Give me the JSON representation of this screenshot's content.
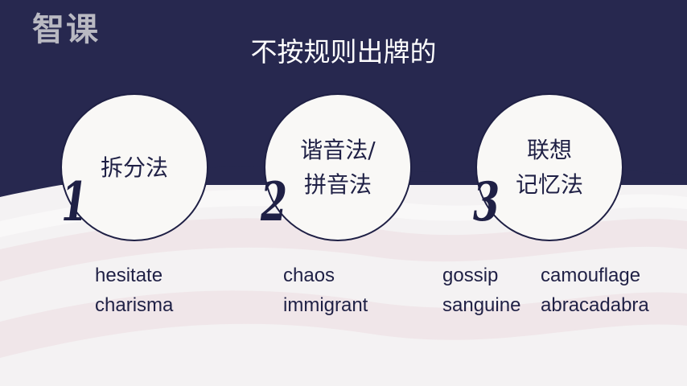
{
  "watermark": {
    "text": "智课"
  },
  "title": "不按规则出牌的",
  "methods": [
    {
      "number": "1",
      "name_line1": "拆分法",
      "name_line2": "",
      "words": [
        "hesitate",
        "charisma"
      ]
    },
    {
      "number": "2",
      "name_line1": "谐音法/",
      "name_line2": "拼音法",
      "words": [
        "chaos",
        "immigrant"
      ]
    },
    {
      "number": "3",
      "name_line1": "联想",
      "name_line2": "记忆法",
      "words_col1": [
        "gossip",
        "sanguine"
      ],
      "words_col2": [
        "camouflage",
        "abracadabra"
      ]
    }
  ],
  "colors": {
    "navy": "#27284f",
    "text_dark": "#1f2045",
    "background": "#f4f2f3",
    "wave_pink": "#ead9dc"
  }
}
